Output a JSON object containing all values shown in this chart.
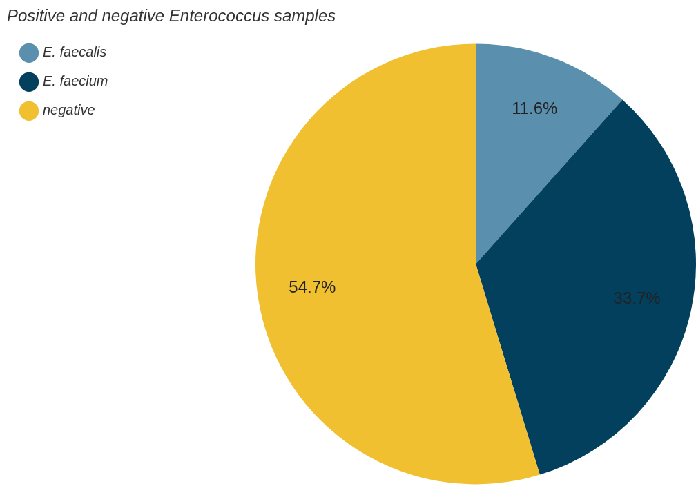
{
  "chart_data": {
    "type": "pie",
    "title": "Positive and negative Enterococcus samples",
    "categories": [
      "E. faecalis",
      "E. faecium",
      "negative"
    ],
    "values": [
      11.6,
      33.7,
      54.7
    ],
    "colors": [
      "#5b8fae",
      "#02405e",
      "#f0c030"
    ],
    "value_labels": [
      "11.6%",
      "33.7%",
      "54.7%"
    ],
    "legend": "top left"
  }
}
